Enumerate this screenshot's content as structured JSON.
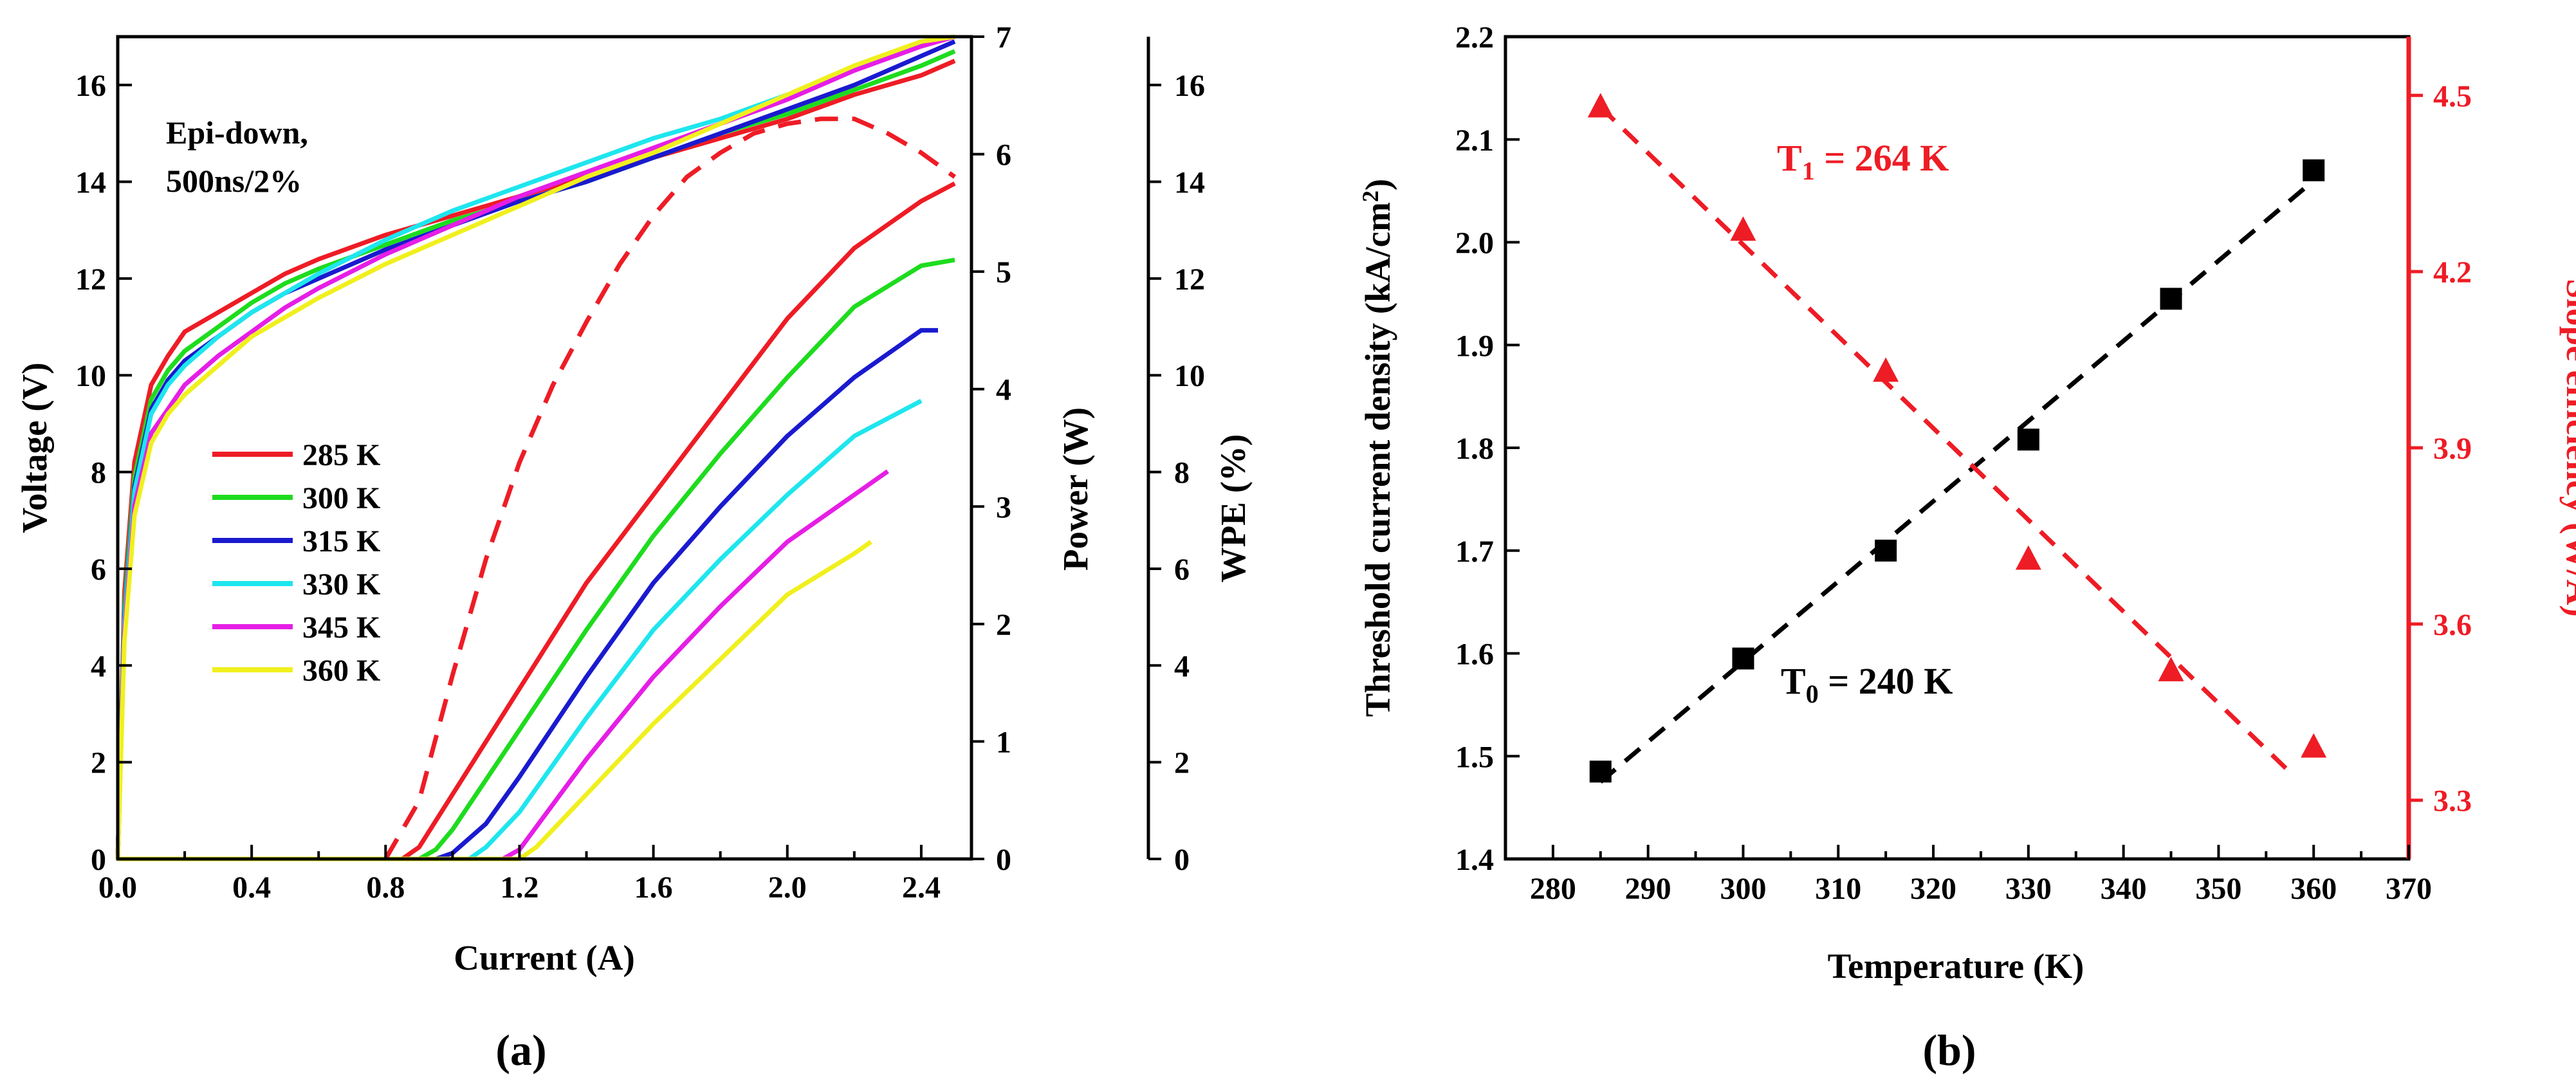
{
  "colors": {
    "285": "#ee1c25",
    "300": "#1edc1e",
    "315": "#1a1acf",
    "330": "#1ee6ee",
    "345": "#e61ee6",
    "360": "#f0f01e",
    "wpe": "#ee1c25",
    "fit_red": "#ee1c25",
    "fit_black": "#000000"
  },
  "panel_a": {
    "caption": "(a)",
    "annotation_line1": "Epi-down,",
    "annotation_line2": "500ns/2%",
    "xlabel": "Current (A)",
    "ylabel_left": "Voltage (V)",
    "ylabel_power": "Power (W)",
    "ylabel_wpe": "WPE (%)",
    "xticks": [
      "0.0",
      "0.4",
      "0.8",
      "1.2",
      "1.6",
      "2.0",
      "2.4"
    ],
    "yticks_voltage": [
      "0",
      "2",
      "4",
      "6",
      "8",
      "10",
      "12",
      "14",
      "16"
    ],
    "yticks_power": [
      "0",
      "1",
      "2",
      "3",
      "4",
      "5",
      "6",
      "7"
    ],
    "yticks_wpe": [
      "0",
      "2",
      "4",
      "6",
      "8",
      "10",
      "12",
      "14",
      "16"
    ],
    "legend": [
      "285 K",
      "300 K",
      "315 K",
      "330 K",
      "345 K",
      "360 K"
    ]
  },
  "panel_b": {
    "caption": "(b)",
    "xlabel": "Temperature (K)",
    "ylabel_left": "Threshold current density (kA/cm",
    "ylabel_left_sup": "2",
    "ylabel_left_end": ")",
    "ylabel_right": "Slope efficiency (W/A)",
    "xticks": [
      "280",
      "290",
      "300",
      "310",
      "320",
      "330",
      "340",
      "350",
      "360",
      "370"
    ],
    "yticks_left": [
      "1.4",
      "1.5",
      "1.6",
      "1.7",
      "1.8",
      "1.9",
      "2.0",
      "2.1",
      "2.2"
    ],
    "yticks_right": [
      "3.3",
      "3.6",
      "3.9",
      "4.2",
      "4.5"
    ],
    "t1_label": "T",
    "t1_sub": "1",
    "t1_value": " = 264 K",
    "t0_label": "T",
    "t0_sub": "0",
    "t0_value": " = 240 K"
  },
  "chart_data": [
    {
      "type": "line",
      "xlabel": "Current (A)",
      "ylabel": "Voltage (V)",
      "xlim": [
        0,
        2.55
      ],
      "ylim": [
        0,
        17
      ],
      "y2label": "Power (W)",
      "y2lim": [
        0,
        7
      ],
      "y3label": "WPE (%)",
      "y3lim": [
        0,
        17
      ],
      "legend_position": "left",
      "voltage_x": [
        0,
        0.02,
        0.05,
        0.1,
        0.15,
        0.2,
        0.3,
        0.4,
        0.5,
        0.6,
        0.8,
        1.0,
        1.2,
        1.4,
        1.6,
        1.8,
        2.0,
        2.2,
        2.4,
        2.5
      ],
      "voltage_series": [
        {
          "name": "285 K",
          "values": [
            0,
            5.5,
            8.2,
            9.8,
            10.4,
            10.9,
            11.3,
            11.7,
            12.1,
            12.4,
            12.9,
            13.3,
            13.7,
            14.1,
            14.5,
            14.9,
            15.3,
            15.8,
            16.2,
            16.5
          ]
        },
        {
          "name": "300 K",
          "values": [
            0,
            5.2,
            7.9,
            9.5,
            10.1,
            10.5,
            11.0,
            11.5,
            11.9,
            12.2,
            12.7,
            13.2,
            13.6,
            14.0,
            14.5,
            15.0,
            15.4,
            15.9,
            16.4,
            16.7
          ]
        },
        {
          "name": "315 K",
          "values": [
            0,
            5.0,
            7.7,
            9.3,
            9.9,
            10.3,
            10.8,
            11.3,
            11.7,
            12.0,
            12.6,
            13.1,
            13.6,
            14.0,
            14.5,
            15.0,
            15.5,
            16.0,
            16.6,
            16.9
          ]
        },
        {
          "name": "330 K",
          "values": [
            0,
            4.9,
            7.6,
            9.2,
            9.8,
            10.2,
            10.8,
            11.3,
            11.7,
            12.1,
            12.8,
            13.4,
            13.9,
            14.4,
            14.9,
            15.3,
            15.8,
            16.3,
            16.9,
            17.0
          ]
        },
        {
          "name": "345 K",
          "values": [
            0,
            4.7,
            7.3,
            8.8,
            9.3,
            9.8,
            10.4,
            10.9,
            11.4,
            11.8,
            12.5,
            13.1,
            13.7,
            14.2,
            14.7,
            15.2,
            15.7,
            16.3,
            16.8,
            17.0
          ]
        },
        {
          "name": "360 K",
          "values": [
            0,
            4.5,
            7.1,
            8.6,
            9.2,
            9.6,
            10.2,
            10.8,
            11.2,
            11.6,
            12.3,
            12.9,
            13.5,
            14.1,
            14.6,
            15.2,
            15.8,
            16.4,
            16.9,
            17.0
          ]
        }
      ],
      "power_series": [
        {
          "name": "285 K",
          "x": [
            0,
            0.85,
            0.9,
            1.0,
            1.2,
            1.4,
            1.6,
            1.8,
            2.0,
            2.2,
            2.4,
            2.5
          ],
          "values": [
            0,
            0,
            0.1,
            0.55,
            1.45,
            2.35,
            3.1,
            3.85,
            4.6,
            5.2,
            5.6,
            5.75
          ]
        },
        {
          "name": "300 K",
          "x": [
            0,
            0.9,
            0.95,
            1.0,
            1.2,
            1.4,
            1.6,
            1.8,
            2.0,
            2.2,
            2.4,
            2.5
          ],
          "values": [
            0,
            0,
            0.08,
            0.25,
            1.1,
            1.95,
            2.75,
            3.45,
            4.1,
            4.7,
            5.05,
            5.1
          ]
        },
        {
          "name": "315 K",
          "x": [
            0,
            0.95,
            1.0,
            1.1,
            1.2,
            1.4,
            1.6,
            1.8,
            2.0,
            2.2,
            2.4,
            2.45
          ],
          "values": [
            0,
            0,
            0.05,
            0.3,
            0.7,
            1.55,
            2.35,
            3.0,
            3.6,
            4.1,
            4.5,
            4.5
          ]
        },
        {
          "name": "330 K",
          "x": [
            0,
            1.05,
            1.1,
            1.2,
            1.4,
            1.6,
            1.8,
            2.0,
            2.2,
            2.4
          ],
          "values": [
            0,
            0,
            0.1,
            0.4,
            1.2,
            1.95,
            2.55,
            3.1,
            3.6,
            3.9
          ]
        },
        {
          "name": "345 K",
          "x": [
            0,
            1.15,
            1.2,
            1.4,
            1.6,
            1.8,
            2.0,
            2.2,
            2.3
          ],
          "values": [
            0,
            0,
            0.08,
            0.85,
            1.55,
            2.15,
            2.7,
            3.1,
            3.3
          ]
        },
        {
          "name": "360 K",
          "x": [
            0,
            1.2,
            1.25,
            1.4,
            1.6,
            1.8,
            2.0,
            2.2,
            2.25
          ],
          "values": [
            0,
            0,
            0.1,
            0.55,
            1.15,
            1.7,
            2.25,
            2.6,
            2.7
          ]
        }
      ],
      "wpe_series": {
        "name": "",
        "style": "dashed",
        "x": [
          0.8,
          0.9,
          1.0,
          1.1,
          1.2,
          1.3,
          1.4,
          1.5,
          1.6,
          1.7,
          1.8,
          1.9,
          2.0,
          2.1,
          2.2,
          2.3,
          2.4,
          2.5
        ],
        "values": [
          0,
          1.2,
          3.8,
          6.2,
          8.2,
          9.8,
          11.1,
          12.3,
          13.3,
          14.1,
          14.6,
          15.0,
          15.2,
          15.3,
          15.3,
          15.0,
          14.6,
          14.1
        ]
      }
    },
    {
      "type": "scatter",
      "xlabel": "Temperature (K)",
      "ylabel": "Threshold current density (kA/cm2)",
      "xlim": [
        275,
        370
      ],
      "ylim": [
        1.4,
        2.2
      ],
      "y2label": "Slope efficiency (W/A)",
      "y2lim": [
        3.2,
        4.6
      ],
      "grid": false,
      "series": [
        {
          "name": "",
          "axis": "left",
          "marker": "square",
          "x": [
            285,
            300,
            315,
            330,
            345,
            360
          ],
          "values": [
            1.485,
            1.595,
            1.7,
            1.808,
            1.945,
            2.07
          ]
        },
        {
          "name": "",
          "axis": "right",
          "marker": "triangle",
          "x": [
            285,
            300,
            315,
            330,
            345,
            360
          ],
          "values": [
            4.48,
            4.27,
            4.03,
            3.71,
            3.52,
            3.39
          ]
        }
      ],
      "fits": [
        {
          "axis": "left",
          "style": "dashed",
          "x": [
            285,
            360
          ],
          "values": [
            1.475,
            2.06
          ]
        },
        {
          "axis": "right",
          "style": "dashed",
          "x": [
            285,
            358
          ],
          "values": [
            4.48,
            3.34
          ]
        }
      ],
      "annotations": [
        "T1 = 264 K",
        "T0 = 240 K"
      ]
    }
  ]
}
